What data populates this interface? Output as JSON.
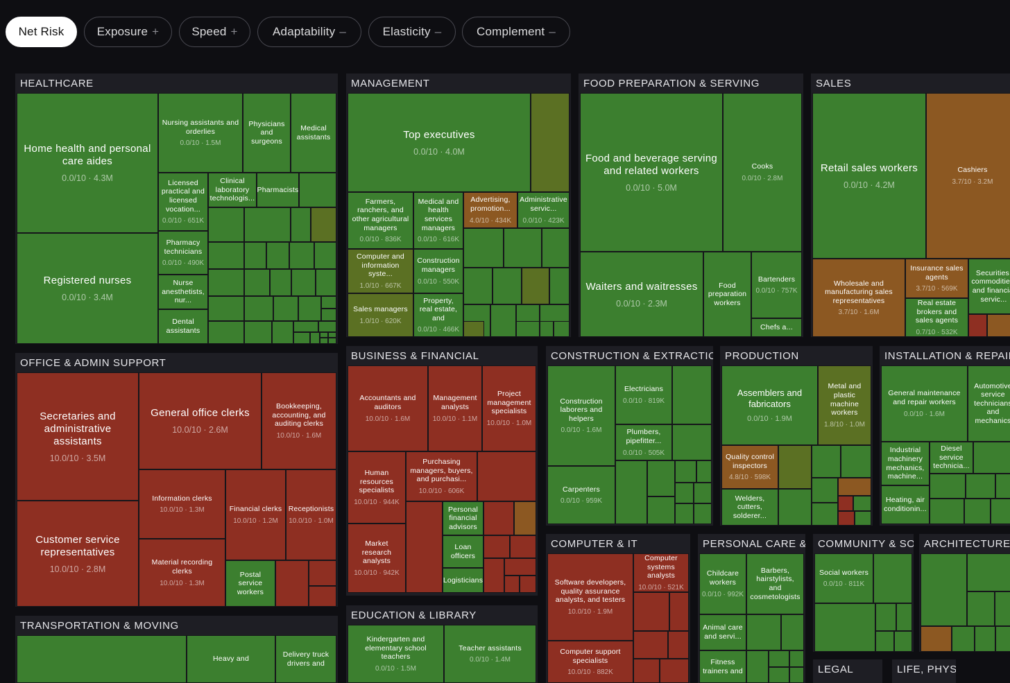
{
  "filters": [
    {
      "label": "Net Risk",
      "symbol": "",
      "active": true
    },
    {
      "label": "Exposure",
      "symbol": "+",
      "active": false
    },
    {
      "label": "Speed",
      "symbol": "+",
      "active": false
    },
    {
      "label": "Adaptability",
      "symbol": "–",
      "active": false
    },
    {
      "label": "Elasticity",
      "symbol": "–",
      "active": false
    },
    {
      "label": "Complement",
      "symbol": "–",
      "active": false
    }
  ],
  "colors": {
    "low": "#3c7f2f",
    "lowMid": "#5b7023",
    "mid": "#8c5822",
    "high": "#8e2f22",
    "background": "#0e0e12",
    "group": "#1e1e24"
  },
  "chart_data": {
    "type": "treemap",
    "title": "",
    "value_unit": "employment",
    "score_unit": "/10 net risk",
    "groups": [
      {
        "name": "HEALTHCARE",
        "items": [
          {
            "name": "Home health and personal care aides",
            "score": 0.0,
            "employment": "4.3M"
          },
          {
            "name": "Registered nurses",
            "score": 0.0,
            "employment": "3.4M"
          },
          {
            "name": "Nursing assistants and orderlies",
            "score": 0.0,
            "employment": "1.5M"
          },
          {
            "name": "Physicians and surgeons"
          },
          {
            "name": "Medical assistants"
          },
          {
            "name": "Licensed practical and licensed vocation...",
            "score": 0.0,
            "employment": "651K"
          },
          {
            "name": "Clinical laboratory technologis..."
          },
          {
            "name": "Pharmacists"
          },
          {
            "name": "Pharmacy technicians",
            "score": 0.0,
            "employment": "490K"
          },
          {
            "name": "Nurse anesthetists, nur..."
          },
          {
            "name": "Dental assistants"
          }
        ]
      },
      {
        "name": "MANAGEMENT",
        "items": [
          {
            "name": "Top executives",
            "score": 0.0,
            "employment": "4.0M"
          },
          {
            "name": "Farmers, ranchers, and other agricultural managers",
            "score": 0.0,
            "employment": "836K"
          },
          {
            "name": "Medical and health services managers",
            "score": 0.0,
            "employment": "616K"
          },
          {
            "name": "Advertising, promotion...",
            "score": 4.0,
            "employment": "434K"
          },
          {
            "name": "Administrative servic...",
            "score": 0.0,
            "employment": "423K"
          },
          {
            "name": "Computer and information syste...",
            "score": 1.0,
            "employment": "667K"
          },
          {
            "name": "Construction managers",
            "score": 0.0,
            "employment": "550K"
          },
          {
            "name": "Sales managers",
            "score": 1.0,
            "employment": "620K"
          },
          {
            "name": "Property, real estate, and",
            "score": 0.0,
            "employment": "466K"
          }
        ]
      },
      {
        "name": "FOOD PREPARATION & SERVING",
        "items": [
          {
            "name": "Food and beverage serving and related workers",
            "score": 0.0,
            "employment": "5.0M"
          },
          {
            "name": "Cooks",
            "score": 0.0,
            "employment": "2.8M"
          },
          {
            "name": "Waiters and waitresses",
            "score": 0.0,
            "employment": "2.3M"
          },
          {
            "name": "Food preparation workers"
          },
          {
            "name": "Bartenders",
            "score": 0.0,
            "employment": "757K"
          },
          {
            "name": "Chefs a..."
          }
        ]
      },
      {
        "name": "SALES",
        "items": [
          {
            "name": "Retail sales workers",
            "score": 0.0,
            "employment": "4.2M"
          },
          {
            "name": "Cashiers",
            "score": 3.7,
            "employment": "3.2M"
          },
          {
            "name": "Wholesale and manufacturing sales representatives",
            "score": 3.7,
            "employment": "1.6M"
          },
          {
            "name": "Insurance sales agents",
            "score": 3.7,
            "employment": "569K"
          },
          {
            "name": "Securities, commodities, and financial servic..."
          },
          {
            "name": "Real estate brokers and sales agents",
            "score": 0.7,
            "employment": "532K"
          }
        ]
      },
      {
        "name": "OFFICE & ADMIN SUPPORT",
        "items": [
          {
            "name": "Secretaries and administrative assistants",
            "score": 10.0,
            "employment": "3.5M"
          },
          {
            "name": "General office clerks",
            "score": 10.0,
            "employment": "2.6M"
          },
          {
            "name": "Bookkeeping, accounting, and auditing clerks",
            "score": 10.0,
            "employment": "1.6M"
          },
          {
            "name": "Customer service representatives",
            "score": 10.0,
            "employment": "2.8M"
          },
          {
            "name": "Information clerks",
            "score": 10.0,
            "employment": "1.3M"
          },
          {
            "name": "Financial clerks",
            "score": 10.0,
            "employment": "1.2M"
          },
          {
            "name": "Receptionists",
            "score": 10.0,
            "employment": "1.0M"
          },
          {
            "name": "Material recording clerks",
            "score": 10.0,
            "employment": "1.3M"
          },
          {
            "name": "Postal service workers"
          }
        ]
      },
      {
        "name": "BUSINESS & FINANCIAL",
        "items": [
          {
            "name": "Accountants and auditors",
            "score": 10.0,
            "employment": "1.6M"
          },
          {
            "name": "Management analysts",
            "score": 10.0,
            "employment": "1.1M"
          },
          {
            "name": "Project management specialists",
            "score": 10.0,
            "employment": "1.0M"
          },
          {
            "name": "Human resources specialists",
            "score": 10.0,
            "employment": "944K"
          },
          {
            "name": "Purchasing managers, buyers, and purchasi...",
            "score": 10.0,
            "employment": "606K"
          },
          {
            "name": "Personal financial advisors"
          },
          {
            "name": "Loan officers"
          },
          {
            "name": "Logisticians"
          },
          {
            "name": "Market research analysts",
            "score": 10.0,
            "employment": "942K"
          }
        ]
      },
      {
        "name": "CONSTRUCTION & EXTRACTION",
        "items": [
          {
            "name": "Construction laborers and helpers",
            "score": 0.0,
            "employment": "1.6M"
          },
          {
            "name": "Electricians",
            "score": 0.0,
            "employment": "819K"
          },
          {
            "name": "Plumbers, pipefitter...",
            "score": 0.0,
            "employment": "505K"
          },
          {
            "name": "Carpenters",
            "score": 0.0,
            "employment": "959K"
          }
        ]
      },
      {
        "name": "PRODUCTION",
        "items": [
          {
            "name": "Assemblers and fabricators",
            "score": 0.0,
            "employment": "1.9M"
          },
          {
            "name": "Metal and plastic machine workers",
            "score": 1.8,
            "employment": "1.0M"
          },
          {
            "name": "Quality control inspectors",
            "score": 4.8,
            "employment": "598K"
          },
          {
            "name": "Welders, cutters, solderer..."
          }
        ]
      },
      {
        "name": "INSTALLATION & REPAIR",
        "items": [
          {
            "name": "General maintenance and repair workers",
            "score": 0.0,
            "employment": "1.6M"
          },
          {
            "name": "Automotive service technicians and mechanics"
          },
          {
            "name": "Industrial machinery mechanics, machine..."
          },
          {
            "name": "Diesel service technicia..."
          },
          {
            "name": "Heating, air conditionin..."
          }
        ]
      },
      {
        "name": "COMPUTER & IT",
        "items": [
          {
            "name": "Software developers, quality assurance analysts, and testers",
            "score": 10.0,
            "employment": "1.9M"
          },
          {
            "name": "Computer systems analysts",
            "score": 10.0,
            "employment": "521K"
          },
          {
            "name": "Computer support specialists",
            "score": 10.0,
            "employment": "882K"
          }
        ]
      },
      {
        "name": "PERSONAL CARE & SERV",
        "items": [
          {
            "name": "Childcare workers",
            "score": 0.0,
            "employment": "992K"
          },
          {
            "name": "Barbers, hairstylists, and cosmetologists"
          },
          {
            "name": "Animal care and servi..."
          },
          {
            "name": "Fitness trainers and"
          }
        ]
      },
      {
        "name": "COMMUNITY & SOCIA",
        "items": [
          {
            "name": "Social workers",
            "score": 0.0,
            "employment": "811K"
          }
        ]
      },
      {
        "name": "ARCHITECTURE & EN",
        "items": []
      },
      {
        "name": "TRANSPORTATION & MOVING",
        "items": [
          {
            "name": "Heavy and"
          },
          {
            "name": "Delivery truck drivers and"
          }
        ]
      },
      {
        "name": "EDUCATION & LIBRARY",
        "items": [
          {
            "name": "Kindergarten and elementary school teachers",
            "score": 0.0,
            "employment": "1.5M"
          },
          {
            "name": "Teacher assistants",
            "score": 0.0,
            "employment": "1.4M"
          }
        ]
      },
      {
        "name": "LEGAL",
        "items": []
      },
      {
        "name": "LIFE, PHYSIC",
        "items": []
      }
    ]
  }
}
